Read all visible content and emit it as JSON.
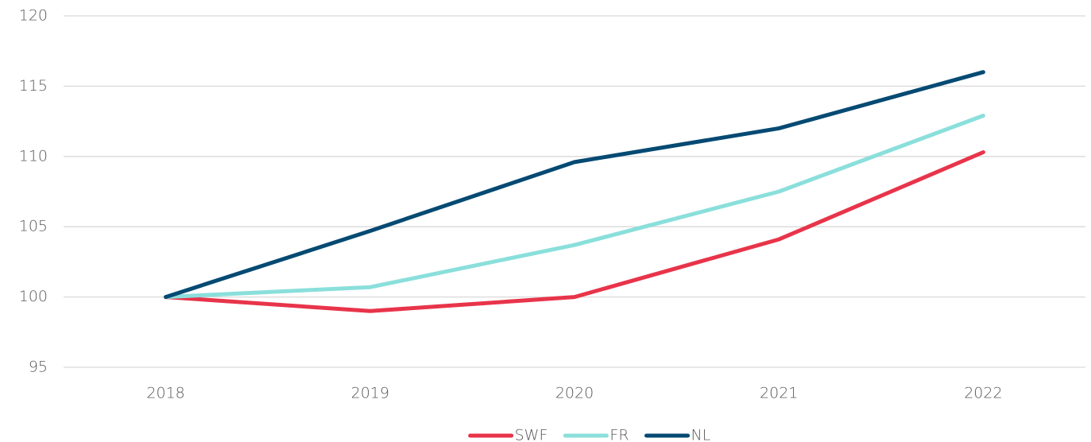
{
  "chart_data": {
    "type": "line",
    "categories": [
      "2018",
      "2019",
      "2020",
      "2021",
      "2022"
    ],
    "series": [
      {
        "name": "SWF",
        "color": "#e8344a",
        "values": [
          100,
          99.0,
          100.0,
          104.1,
          110.3
        ]
      },
      {
        "name": "FR",
        "color": "#8adfdb",
        "values": [
          100,
          100.7,
          103.7,
          107.5,
          112.9
        ]
      },
      {
        "name": "NL",
        "color": "#044a73",
        "values": [
          100,
          104.7,
          109.6,
          112.0,
          116.0
        ]
      }
    ],
    "ylim": [
      95,
      120
    ],
    "yticks": [
      95,
      100,
      105,
      110,
      115,
      120
    ],
    "grid": true,
    "legend": "bottom"
  }
}
